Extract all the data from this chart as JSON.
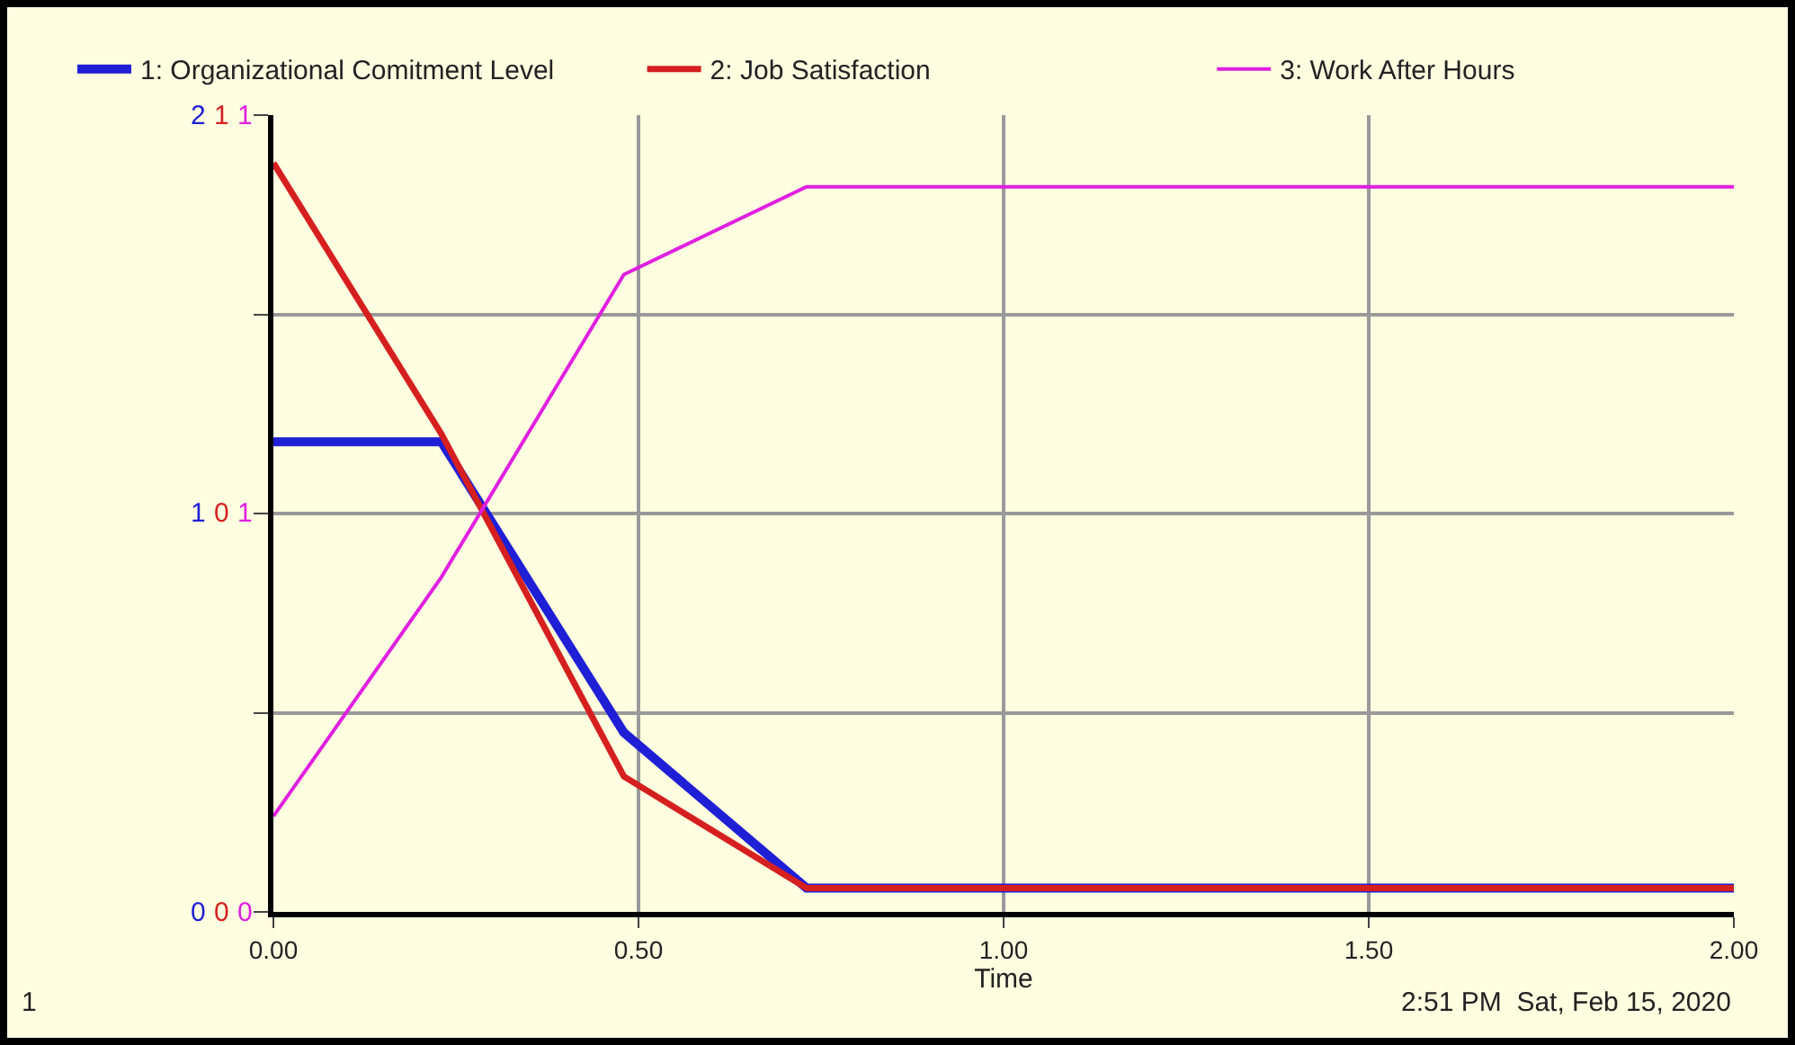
{
  "chart_data": {
    "type": "line",
    "xlabel": "Time",
    "legend": "top",
    "grid": true,
    "line_style": "solid",
    "marker": "none",
    "x": [
      0,
      0.23,
      0.48,
      0.73,
      2
    ],
    "xlim": [
      0,
      2
    ],
    "xticks": [
      {
        "value": 0,
        "label": "0.00"
      },
      {
        "value": 0.5,
        "label": "0.50"
      },
      {
        "value": 1,
        "label": "1.00"
      },
      {
        "value": 1.5,
        "label": "1.50"
      },
      {
        "value": 2,
        "label": "2.00"
      }
    ],
    "ylim": [
      0,
      2
    ],
    "yticks": [
      0,
      {
        "value": 0.5,
        "label": null
      },
      1,
      {
        "value": 1.5,
        "label": null
      },
      2
    ],
    "y2lim": [
      0,
      1
    ],
    "y2ticks": [
      {
        "value": 0,
        "label": "0"
      },
      {
        "value": 0.5,
        "label": "0"
      },
      {
        "value": 1,
        "label": "1"
      }
    ],
    "y3lim": [
      0,
      1
    ],
    "y3ticks": [
      {
        "value": 0,
        "label": "0"
      },
      {
        "value": 0.5,
        "label": "1"
      },
      {
        "value": 1,
        "label": "1"
      }
    ],
    "series": [
      {
        "name": "1: Organizational Comitment Level",
        "color": "#1f1fd6",
        "values": [
          1.18,
          1.18,
          0.45,
          0.06,
          0.06
        ]
      },
      {
        "name": "2: Job Satisfaction",
        "color": "#d61f1f",
        "axis": "y2",
        "values": [
          0.94,
          0.6,
          0.17,
          0.03,
          0.03
        ]
      },
      {
        "name": "3: Work After Hours",
        "color": "#e01fe0",
        "axis": "y3",
        "values": [
          0.12,
          0.42,
          0.8,
          0.91,
          0.91
        ]
      }
    ],
    "annotations": [
      "1",
      "2:51 PM  Sat, Feb 15, 2020"
    ]
  }
}
